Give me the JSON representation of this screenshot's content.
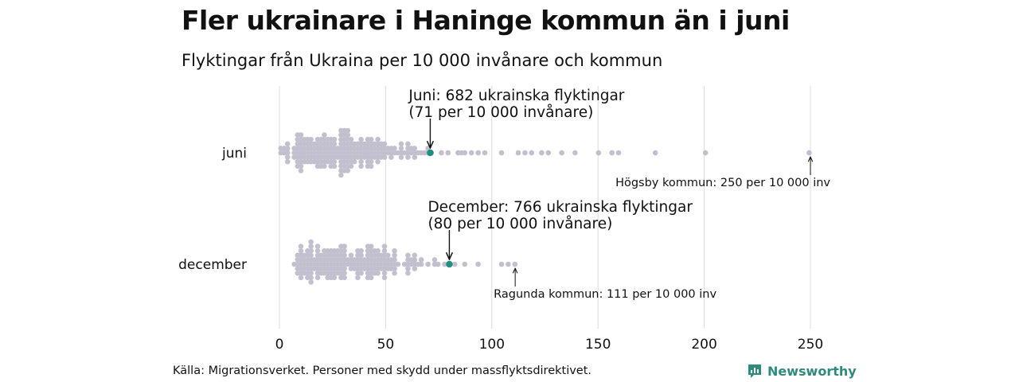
{
  "header": {
    "title": "Fler ukrainare i Haninge kommun än i juni",
    "subtitle": "Flyktingar från Ukraina per 10 000 invånare och kommun"
  },
  "footer": {
    "source": "Källa: Migrationsverket. Personer med skydd under massflyktsdirektivet.",
    "brand": "Newsworthy"
  },
  "colors": {
    "dot": "#c2c0cf",
    "highlight": "#1f8f7f",
    "grid": "#dcdcdc",
    "brand": "#2e8b7e"
  },
  "chart_data": {
    "type": "scatter",
    "variant": "beeswarm",
    "title": "Fler ukrainare i Haninge kommun än i juni",
    "subtitle": "Flyktingar från Ukraina per 10 000 invånare och kommun",
    "xlim": [
      0,
      250
    ],
    "xticks": [
      0,
      50,
      100,
      150,
      200,
      250
    ],
    "grid": true,
    "series": [
      {
        "name": "juni",
        "outliers": [
          77,
          80,
          84,
          86,
          88,
          91,
          94,
          96,
          105,
          113,
          115,
          119,
          124,
          127,
          133,
          139,
          150,
          156,
          160,
          177,
          200,
          250
        ],
        "highlight": {
          "value": 71,
          "label_line1": "Juni: 682 ukrainska flyktingar",
          "label_line2": "(71 per 10 000 invånare)"
        },
        "extreme": {
          "value": 250,
          "label": "Högsby kommun: 250 per 10 000 inv"
        }
      },
      {
        "name": "december",
        "outliers": [
          82,
          87,
          94,
          104,
          108,
          111
        ],
        "highlight": {
          "value": 80,
          "label_line1": "December: 766 ukrainska flyktingar",
          "label_line2": "(80 per 10 000 invånare)"
        },
        "extreme": {
          "value": 111,
          "label": "Ragunda kommun: 111 per 10 000 inv"
        }
      }
    ]
  }
}
